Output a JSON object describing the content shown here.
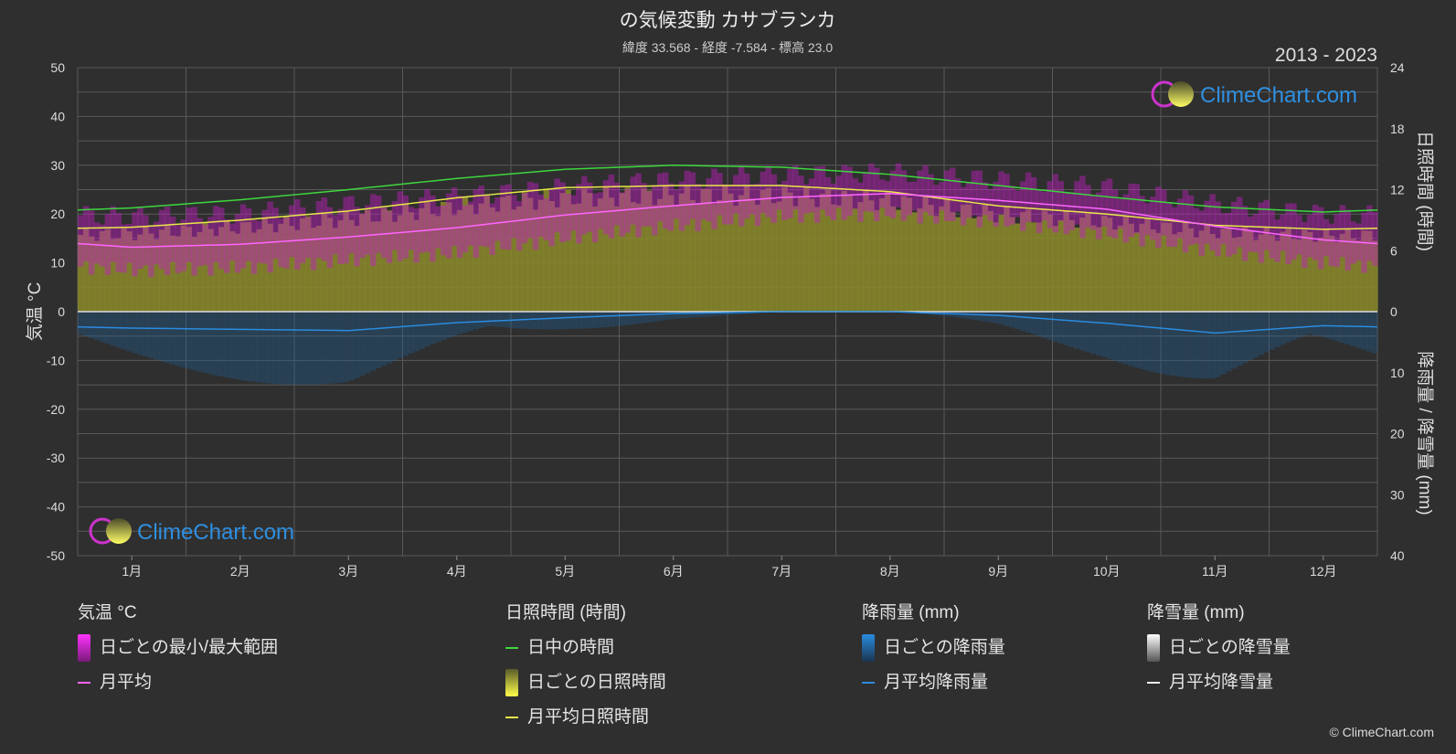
{
  "header": {
    "title": "の気候変動 カサブランカ",
    "subtitle": "緯度 33.568 - 経度 -7.584 - 標高 23.0",
    "year_range": "2013 - 2023"
  },
  "watermark": {
    "text": "ClimeChart.com"
  },
  "copyright": "© ClimeChart.com",
  "chart_data": {
    "type": "line",
    "categories": [
      "1月",
      "2月",
      "3月",
      "4月",
      "5月",
      "6月",
      "7月",
      "8月",
      "9月",
      "10月",
      "11月",
      "12月"
    ],
    "axes": {
      "left": {
        "label": "気温 °C",
        "ticks": [
          "50",
          "40",
          "30",
          "20",
          "10",
          "0",
          "-10",
          "-20",
          "-30",
          "-40",
          "-50"
        ],
        "min": -50,
        "max": 50
      },
      "right_top": {
        "label": "日照時間 (時間)",
        "ticks": [
          "24",
          "18",
          "12",
          "6",
          "0"
        ],
        "min": 0,
        "max": 24
      },
      "right_bottom": {
        "label": "降雨量 / 降雪量 (mm)",
        "ticks": [
          "10",
          "20",
          "30",
          "40"
        ],
        "min": 0,
        "max": 40
      }
    },
    "series": [
      {
        "name": "日中の時間",
        "unit": "hours",
        "color": "#3ed63e",
        "values": [
          10.2,
          11.0,
          12.0,
          13.1,
          14.0,
          14.4,
          14.2,
          13.5,
          12.4,
          11.3,
          10.3,
          9.8
        ]
      },
      {
        "name": "月平均日照時間",
        "unit": "hours",
        "color": "#e8e84a",
        "values": [
          8.3,
          9.0,
          9.9,
          11.2,
          12.2,
          12.4,
          12.4,
          11.8,
          10.4,
          9.6,
          8.5,
          8.1
        ]
      },
      {
        "name": "月平均",
        "unit": "°C",
        "color": "#ff66ff",
        "values": [
          13.2,
          13.8,
          15.3,
          17.2,
          19.8,
          21.7,
          23.4,
          24.2,
          22.8,
          21.0,
          17.5,
          14.7
        ]
      },
      {
        "name": "月平均降雨量",
        "unit": "mm",
        "color": "#2a8ce0",
        "values": [
          2.7,
          2.9,
          3.1,
          1.8,
          1.0,
          0.3,
          0.0,
          0.0,
          0.6,
          1.9,
          3.5,
          2.3
        ]
      }
    ],
    "temp_band": {
      "name": "日ごとの最小/最大範囲",
      "min": [
        8.5,
        9.0,
        10.5,
        12.0,
        15.0,
        17.5,
        19.5,
        20.0,
        18.5,
        16.0,
        12.5,
        10.0
      ],
      "max": [
        19.5,
        20.0,
        22.0,
        23.5,
        25.5,
        27.0,
        28.0,
        28.5,
        27.0,
        25.5,
        22.0,
        20.0
      ]
    },
    "grid": true
  },
  "legend": {
    "groups": [
      {
        "title": "気温 °C",
        "items": [
          {
            "label": "日ごとの最小/最大範囲",
            "swatch": "magenta-box"
          },
          {
            "label": "月平均",
            "swatch": "pink-line"
          }
        ]
      },
      {
        "title": "日照時間 (時間)",
        "items": [
          {
            "label": "日中の時間",
            "swatch": "green-line"
          },
          {
            "label": "日ごとの日照時間",
            "swatch": "yellow-box"
          },
          {
            "label": "月平均日照時間",
            "swatch": "yellow-line"
          }
        ]
      },
      {
        "title": "降雨量 (mm)",
        "items": [
          {
            "label": "日ごとの降雨量",
            "swatch": "blue-box"
          },
          {
            "label": "月平均降雨量",
            "swatch": "blue-line"
          }
        ]
      },
      {
        "title": "降雪量 (mm)",
        "items": [
          {
            "label": "日ごとの降雪量",
            "swatch": "white-box"
          },
          {
            "label": "月平均降雪量",
            "swatch": "white-line"
          }
        ]
      }
    ]
  },
  "colors": {
    "background": "#2f2f2f",
    "temp_band": "#c020c0",
    "sunshine_band": "#8a8a2a",
    "rain_bars": "#1f5f94",
    "grid": "#5a5a5a",
    "watermark": "#2f8fe0"
  }
}
